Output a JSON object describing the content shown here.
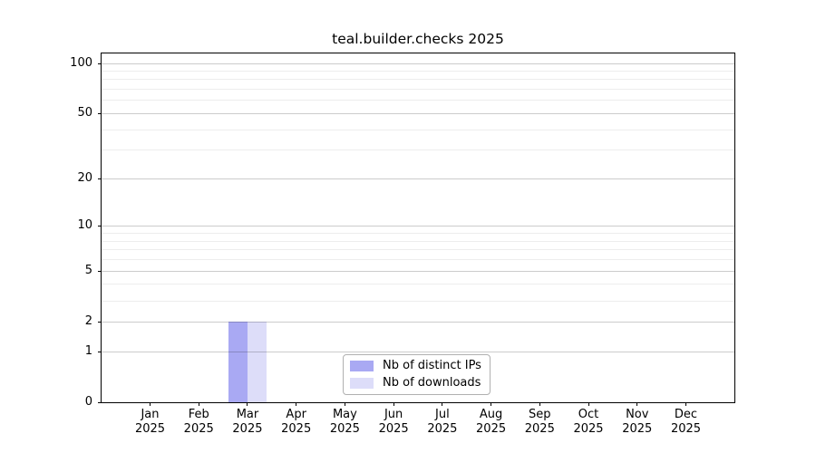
{
  "chart_data": {
    "type": "bar",
    "title": "teal.builder.checks 2025",
    "x_year": "2025",
    "categories": [
      {
        "month": "Jan",
        "year": "2025"
      },
      {
        "month": "Feb",
        "year": "2025"
      },
      {
        "month": "Mar",
        "year": "2025"
      },
      {
        "month": "Apr",
        "year": "2025"
      },
      {
        "month": "May",
        "year": "2025"
      },
      {
        "month": "Jun",
        "year": "2025"
      },
      {
        "month": "Jul",
        "year": "2025"
      },
      {
        "month": "Aug",
        "year": "2025"
      },
      {
        "month": "Sep",
        "year": "2025"
      },
      {
        "month": "Oct",
        "year": "2025"
      },
      {
        "month": "Nov",
        "year": "2025"
      },
      {
        "month": "Dec",
        "year": "2025"
      }
    ],
    "series": [
      {
        "name": "Nb of distinct IPs",
        "color": "#a9a9f3",
        "values": [
          0,
          0,
          2,
          0,
          0,
          0,
          0,
          0,
          0,
          0,
          0,
          0
        ]
      },
      {
        "name": "Nb of downloads",
        "color": "#ddddf9",
        "values": [
          0,
          0,
          2,
          0,
          0,
          0,
          0,
          0,
          0,
          0,
          0,
          0
        ]
      }
    ],
    "y_scale": "log1p",
    "ylim": [
      0,
      114
    ],
    "y_major_ticks": [
      0,
      1,
      2,
      5,
      10,
      20,
      50,
      100
    ],
    "y_minor_gridlines": [
      3,
      4,
      6,
      7,
      8,
      9,
      30,
      40,
      60,
      70,
      80,
      90
    ],
    "grid": true,
    "legend_position": "lower-center",
    "colors": {
      "spine": "#000000",
      "grid_major": "rgba(0,0,0,0.20)",
      "grid_minor": "rgba(0,0,0,0.07)",
      "legend_border": "#b0b0b0",
      "background": "#ffffff"
    }
  }
}
